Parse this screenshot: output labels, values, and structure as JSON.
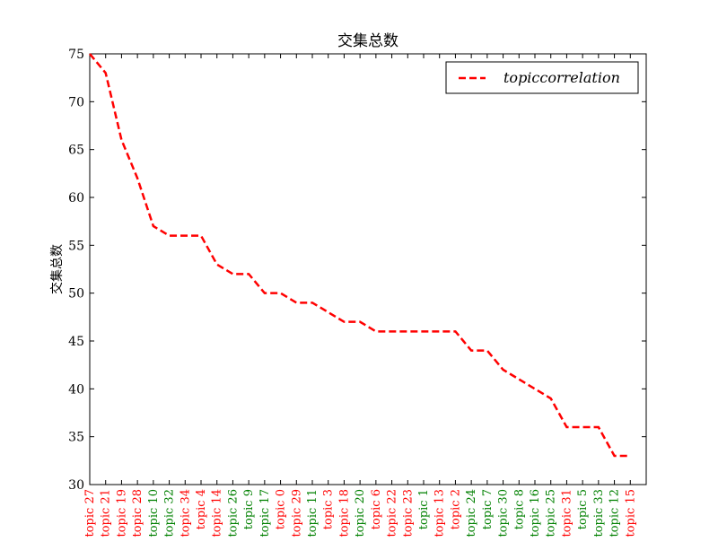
{
  "chart_data": {
    "type": "line",
    "title": "交集总数",
    "ylabel": "交集总数",
    "xlabel": "",
    "ylim": [
      30,
      75
    ],
    "y_ticks": [
      30,
      35,
      40,
      45,
      50,
      55,
      60,
      65,
      70,
      75
    ],
    "grid": false,
    "legend_position": "top-right",
    "categories": [
      "topic 27",
      "topic 21",
      "topic 19",
      "topic 28",
      "topic 10",
      "topic 32",
      "topic 34",
      "topic 4",
      "topic 14",
      "topic 26",
      "topic 9",
      "topic 17",
      "topic 0",
      "topic 29",
      "topic 11",
      "topic 3",
      "topic 18",
      "topic 20",
      "topic 6",
      "topic 22",
      "topic 23",
      "topic 1",
      "topic 13",
      "topic 2",
      "topic 24",
      "topic 7",
      "topic 30",
      "topic 8",
      "topic 16",
      "topic 25",
      "topic 31",
      "topic 5",
      "topic 33",
      "topic 12",
      "topic 15"
    ],
    "category_colors": [
      "#ff0000",
      "#ff0000",
      "#ff0000",
      "#ff0000",
      "#008000",
      "#008000",
      "#ff0000",
      "#ff0000",
      "#ff0000",
      "#008000",
      "#008000",
      "#008000",
      "#ff0000",
      "#ff0000",
      "#008000",
      "#ff0000",
      "#ff0000",
      "#008000",
      "#ff0000",
      "#ff0000",
      "#ff0000",
      "#008000",
      "#ff0000",
      "#ff0000",
      "#008000",
      "#008000",
      "#008000",
      "#008000",
      "#008000",
      "#008000",
      "#ff0000",
      "#008000",
      "#008000",
      "#008000",
      "#ff0000"
    ],
    "series": [
      {
        "name": "topiccorrelation",
        "color": "#ff0000",
        "line_style": "dashed",
        "values": [
          75,
          73,
          66,
          62,
          57,
          56,
          56,
          56,
          53,
          52,
          52,
          50,
          50,
          49,
          49,
          48,
          47,
          47,
          46,
          46,
          46,
          46,
          46,
          46,
          44,
          44,
          42,
          41,
          40,
          39,
          36,
          36,
          36,
          33,
          33
        ]
      }
    ]
  }
}
